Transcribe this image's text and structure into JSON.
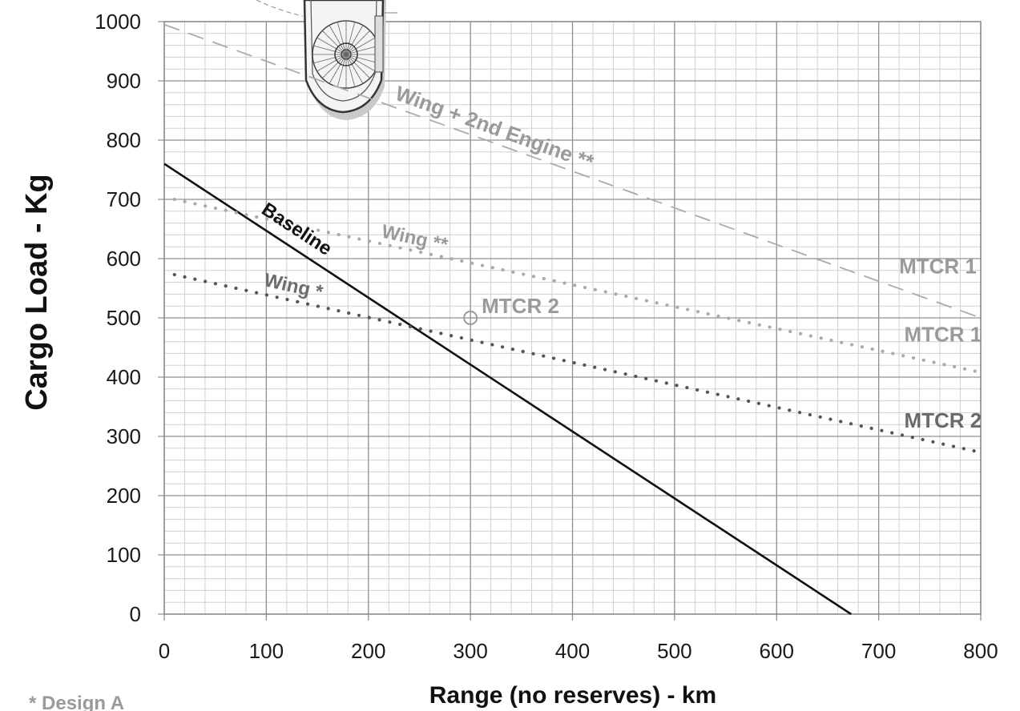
{
  "chart_data": {
    "type": "line",
    "xlabel": "Range (no reserves) - km",
    "ylabel": "Cargo Load - Kg",
    "xlim": [
      0,
      800
    ],
    "ylim": [
      0,
      1000
    ],
    "xticks": [
      0,
      100,
      200,
      300,
      400,
      500,
      600,
      700,
      800
    ],
    "yticks": [
      0,
      100,
      200,
      300,
      400,
      500,
      600,
      700,
      800,
      900,
      1000
    ],
    "grid": true,
    "series": [
      {
        "name": "Baseline",
        "style": "solid",
        "color": "#111111",
        "x": [
          0,
          673
        ],
        "y": [
          760,
          0
        ]
      },
      {
        "name": "Wing *",
        "style": "dotted",
        "color": "#555555",
        "x": [
          10,
          800
        ],
        "y": [
          573,
          273
        ]
      },
      {
        "name": "Wing **",
        "style": "dotted",
        "color": "#aaaaaa",
        "x": [
          10,
          800
        ],
        "y": [
          700,
          408
        ]
      },
      {
        "name": "Wing + 2nd Engine **",
        "style": "dashed",
        "color": "#aaaaaa",
        "x": [
          0,
          800
        ],
        "y": [
          995,
          500
        ]
      }
    ],
    "points": [
      {
        "label": "MTCR 2",
        "x": 300,
        "y": 500,
        "marker": "circle",
        "color": "#9a9a9a"
      }
    ],
    "annotations": [
      {
        "text": "MTCR 1",
        "x": 720,
        "y": 575,
        "color": "#9a9a9a"
      },
      {
        "text": "MTCR 1",
        "x": 725,
        "y": 460,
        "color": "#9a9a9a"
      },
      {
        "text": "MTCR 2",
        "x": 725,
        "y": 315,
        "color": "#6a6a6a"
      }
    ],
    "footnote": "* Design A"
  }
}
